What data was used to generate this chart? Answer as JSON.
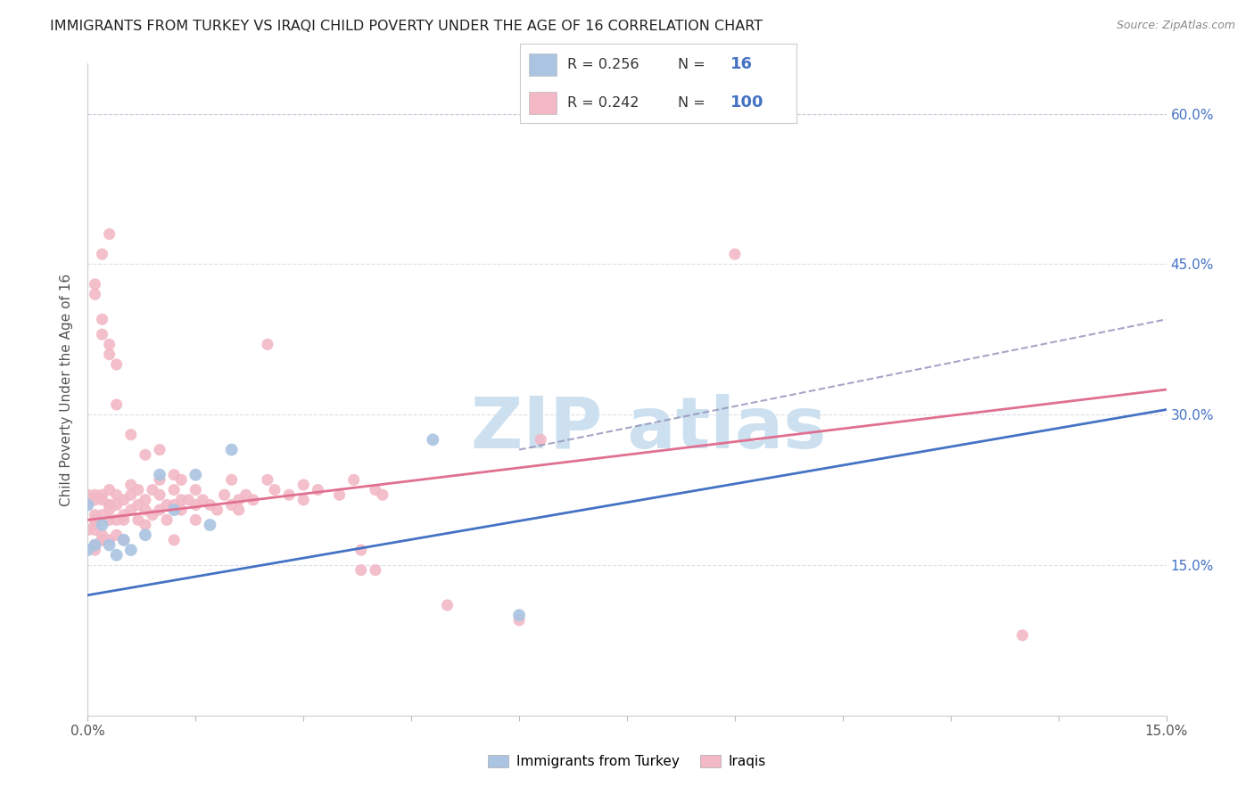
{
  "title": "IMMIGRANTS FROM TURKEY VS IRAQI CHILD POVERTY UNDER THE AGE OF 16 CORRELATION CHART",
  "source": "Source: ZipAtlas.com",
  "ylabel": "Child Poverty Under the Age of 16",
  "xlim": [
    0.0,
    0.15
  ],
  "ylim": [
    0.0,
    0.65
  ],
  "blue_color": "#aac4e2",
  "pink_color": "#f2b8c6",
  "line_blue": "#4472c4",
  "line_pink": "#e07090",
  "line_dash_color": "#9090b8",
  "right_tick_color": "#4472c4",
  "title_color": "#222222",
  "source_color": "#888888",
  "ylabel_color": "#555555",
  "watermark_color": "#cce0f0",
  "grid_color": "#e0e0e8",
  "blue_line_x0": 0.0,
  "blue_line_y0": 0.12,
  "blue_line_x1": 0.15,
  "blue_line_y1": 0.305,
  "pink_line_x0": 0.0,
  "pink_line_y0": 0.195,
  "pink_line_x1": 0.15,
  "pink_line_y1": 0.325,
  "dash_line_x0": 0.06,
  "dash_line_y0": 0.265,
  "dash_line_x1": 0.15,
  "dash_line_y1": 0.395,
  "turkey_x": [
    0.0,
    0.0,
    0.001,
    0.002,
    0.003,
    0.004,
    0.005,
    0.006,
    0.008,
    0.01,
    0.012,
    0.015,
    0.017,
    0.02,
    0.048,
    0.06
  ],
  "turkey_y": [
    0.21,
    0.165,
    0.17,
    0.19,
    0.17,
    0.16,
    0.175,
    0.165,
    0.18,
    0.24,
    0.205,
    0.24,
    0.19,
    0.265,
    0.275,
    0.1
  ],
  "iraqi_x": [
    0.0,
    0.0,
    0.0,
    0.001,
    0.001,
    0.001,
    0.001,
    0.001,
    0.001,
    0.001,
    0.001,
    0.002,
    0.002,
    0.002,
    0.002,
    0.002,
    0.002,
    0.003,
    0.003,
    0.003,
    0.003,
    0.003,
    0.003,
    0.004,
    0.004,
    0.004,
    0.004,
    0.005,
    0.005,
    0.005,
    0.005,
    0.006,
    0.006,
    0.006,
    0.007,
    0.007,
    0.007,
    0.008,
    0.008,
    0.008,
    0.009,
    0.009,
    0.01,
    0.01,
    0.01,
    0.011,
    0.011,
    0.012,
    0.012,
    0.013,
    0.013,
    0.013,
    0.014,
    0.015,
    0.015,
    0.015,
    0.016,
    0.017,
    0.018,
    0.019,
    0.02,
    0.02,
    0.021,
    0.021,
    0.022,
    0.023,
    0.025,
    0.026,
    0.028,
    0.03,
    0.03,
    0.032,
    0.035,
    0.037,
    0.04,
    0.041,
    0.002,
    0.003,
    0.004,
    0.09,
    0.012,
    0.025,
    0.038,
    0.038,
    0.05,
    0.063,
    0.001,
    0.001,
    0.002,
    0.002,
    0.003,
    0.003,
    0.004,
    0.006,
    0.008,
    0.01,
    0.012,
    0.04,
    0.06,
    0.13
  ],
  "iraqi_y": [
    0.21,
    0.22,
    0.185,
    0.22,
    0.215,
    0.2,
    0.185,
    0.17,
    0.165,
    0.195,
    0.19,
    0.215,
    0.22,
    0.2,
    0.175,
    0.18,
    0.175,
    0.21,
    0.195,
    0.175,
    0.21,
    0.205,
    0.225,
    0.195,
    0.21,
    0.18,
    0.22,
    0.2,
    0.215,
    0.195,
    0.175,
    0.23,
    0.22,
    0.205,
    0.225,
    0.21,
    0.195,
    0.215,
    0.205,
    0.19,
    0.225,
    0.2,
    0.22,
    0.235,
    0.205,
    0.21,
    0.195,
    0.225,
    0.21,
    0.235,
    0.215,
    0.205,
    0.215,
    0.21,
    0.195,
    0.225,
    0.215,
    0.21,
    0.205,
    0.22,
    0.235,
    0.21,
    0.215,
    0.205,
    0.22,
    0.215,
    0.235,
    0.225,
    0.22,
    0.23,
    0.215,
    0.225,
    0.22,
    0.235,
    0.225,
    0.22,
    0.46,
    0.48,
    0.35,
    0.46,
    0.175,
    0.37,
    0.145,
    0.165,
    0.11,
    0.275,
    0.42,
    0.43,
    0.395,
    0.38,
    0.37,
    0.36,
    0.31,
    0.28,
    0.26,
    0.265,
    0.24,
    0.145,
    0.095,
    0.08
  ]
}
